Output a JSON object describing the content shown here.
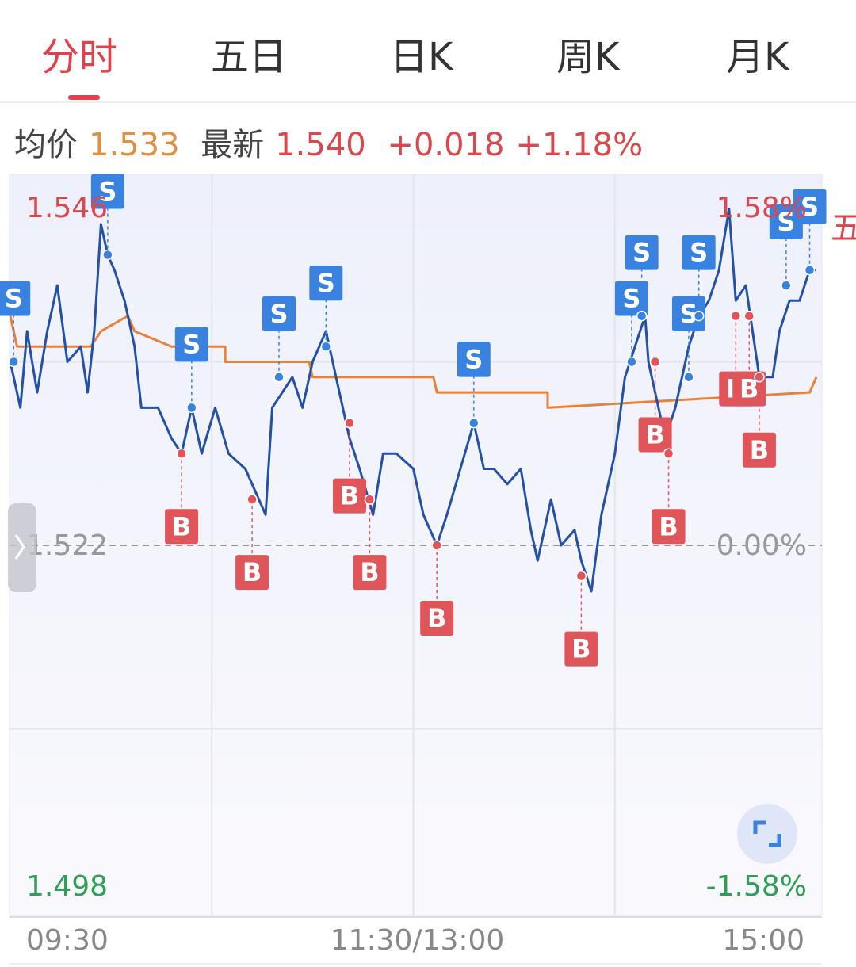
{
  "tabs": [
    "分时",
    "五日",
    "日K",
    "周K",
    "月K"
  ],
  "quote": {
    "avg_label": "均价",
    "avg": "1.533",
    "last_label": "最新",
    "last": "1.540",
    "change": "+0.018",
    "change_pct": "+1.18%"
  },
  "side_label": "五",
  "chart_data": {
    "type": "line",
    "xlim": [
      0,
      240
    ],
    "xticks": [
      {
        "value": 0,
        "label": "09:30"
      },
      {
        "value": 120,
        "label": "11:30/13:00"
      },
      {
        "value": 240,
        "label": "15:00"
      }
    ],
    "xgrid": [
      60,
      120,
      180
    ],
    "ylim": [
      1.498,
      1.546
    ],
    "yticks": [
      1.546,
      1.522,
      1.498
    ],
    "ygrid": [
      1.534,
      1.51
    ],
    "base_line": 1.522,
    "y2lim": [
      -1.58,
      1.58
    ],
    "y2ticks": [
      {
        "value": 1.58,
        "label": "1.58%"
      },
      {
        "value": 0,
        "label": "0.00%"
      },
      {
        "value": -1.58,
        "label": "-1.58%"
      }
    ],
    "series": [
      {
        "color": "#2450a6",
        "x": [
          0,
          3,
          5,
          8,
          11,
          14,
          17,
          21,
          23,
          25,
          27,
          29,
          31,
          34,
          37,
          39,
          44,
          48,
          51,
          54,
          57,
          61,
          65,
          70,
          74,
          76,
          78,
          81,
          84,
          87,
          90,
          94,
          97,
          101,
          104,
          108,
          111,
          115,
          120,
          123,
          127,
          130,
          134,
          138,
          141,
          144,
          148,
          152,
          155,
          157,
          161,
          164,
          168,
          170,
          173,
          176,
          180,
          183,
          186,
          189,
          190,
          193,
          195,
          198,
          200,
          202,
          205,
          208,
          211,
          214,
          216,
          219,
          221,
          223,
          227,
          229,
          232,
          235,
          238,
          240
        ],
        "values": [
          1.534,
          1.531,
          1.536,
          1.532,
          1.536,
          1.539,
          1.534,
          1.535,
          1.532,
          1.536,
          1.543,
          1.541,
          1.54,
          1.538,
          1.535,
          1.531,
          1.531,
          1.529,
          1.528,
          1.531,
          1.528,
          1.531,
          1.528,
          1.527,
          1.525,
          1.524,
          1.531,
          1.532,
          1.533,
          1.531,
          1.534,
          1.536,
          1.533,
          1.529,
          1.527,
          1.524,
          1.528,
          1.528,
          1.527,
          1.524,
          1.522,
          1.524,
          1.527,
          1.53,
          1.527,
          1.527,
          1.526,
          1.527,
          1.523,
          1.521,
          1.525,
          1.522,
          1.523,
          1.521,
          1.519,
          1.524,
          1.528,
          1.533,
          1.535,
          1.537,
          1.534,
          1.531,
          1.529,
          1.531,
          1.533,
          1.535,
          1.537,
          1.538,
          1.54,
          1.544,
          1.538,
          1.539,
          1.536,
          1.533,
          1.533,
          1.536,
          1.538,
          1.538,
          1.54,
          1.54
        ]
      },
      {
        "color": "#e8823a",
        "x": [
          0,
          2,
          24,
          27,
          35,
          37,
          48,
          64,
          64,
          89,
          90,
          126,
          127,
          160,
          160,
          238,
          240
        ],
        "values": [
          1.537,
          1.535,
          1.535,
          1.536,
          1.537,
          1.536,
          1.535,
          1.535,
          1.534,
          1.534,
          1.533,
          1.533,
          1.532,
          1.532,
          1.531,
          1.532,
          1.533
        ]
      }
    ],
    "signal_colors": {
      "B": "#e0555a",
      "S": "#3a82e0"
    },
    "signals": [
      {
        "x": 1,
        "price": 1.534,
        "side": "S"
      },
      {
        "x": 29,
        "price": 1.541,
        "side": "S"
      },
      {
        "x": 54,
        "price": 1.531,
        "side": "S"
      },
      {
        "x": 80,
        "price": 1.533,
        "side": "S"
      },
      {
        "x": 94,
        "price": 1.535,
        "side": "S"
      },
      {
        "x": 138,
        "price": 1.53,
        "side": "S"
      },
      {
        "x": 185,
        "price": 1.534,
        "side": "S"
      },
      {
        "x": 188,
        "price": 1.537,
        "side": "S"
      },
      {
        "x": 202,
        "price": 1.533,
        "side": "S"
      },
      {
        "x": 205,
        "price": 1.537,
        "side": "S"
      },
      {
        "x": 231,
        "price": 1.539,
        "side": "S"
      },
      {
        "x": 238,
        "price": 1.54,
        "side": "S"
      },
      {
        "x": 51,
        "price": 1.528,
        "side": "B"
      },
      {
        "x": 72,
        "price": 1.525,
        "side": "B"
      },
      {
        "x": 101,
        "price": 1.53,
        "side": "B"
      },
      {
        "x": 107,
        "price": 1.525,
        "side": "B"
      },
      {
        "x": 127,
        "price": 1.522,
        "side": "B"
      },
      {
        "x": 170,
        "price": 1.52,
        "side": "B"
      },
      {
        "x": 192,
        "price": 1.534,
        "side": "B"
      },
      {
        "x": 196,
        "price": 1.528,
        "side": "B"
      },
      {
        "x": 216,
        "price": 1.537,
        "side": "B"
      },
      {
        "x": 220,
        "price": 1.537,
        "side": "B"
      },
      {
        "x": 223,
        "price": 1.533,
        "side": "B"
      }
    ]
  }
}
